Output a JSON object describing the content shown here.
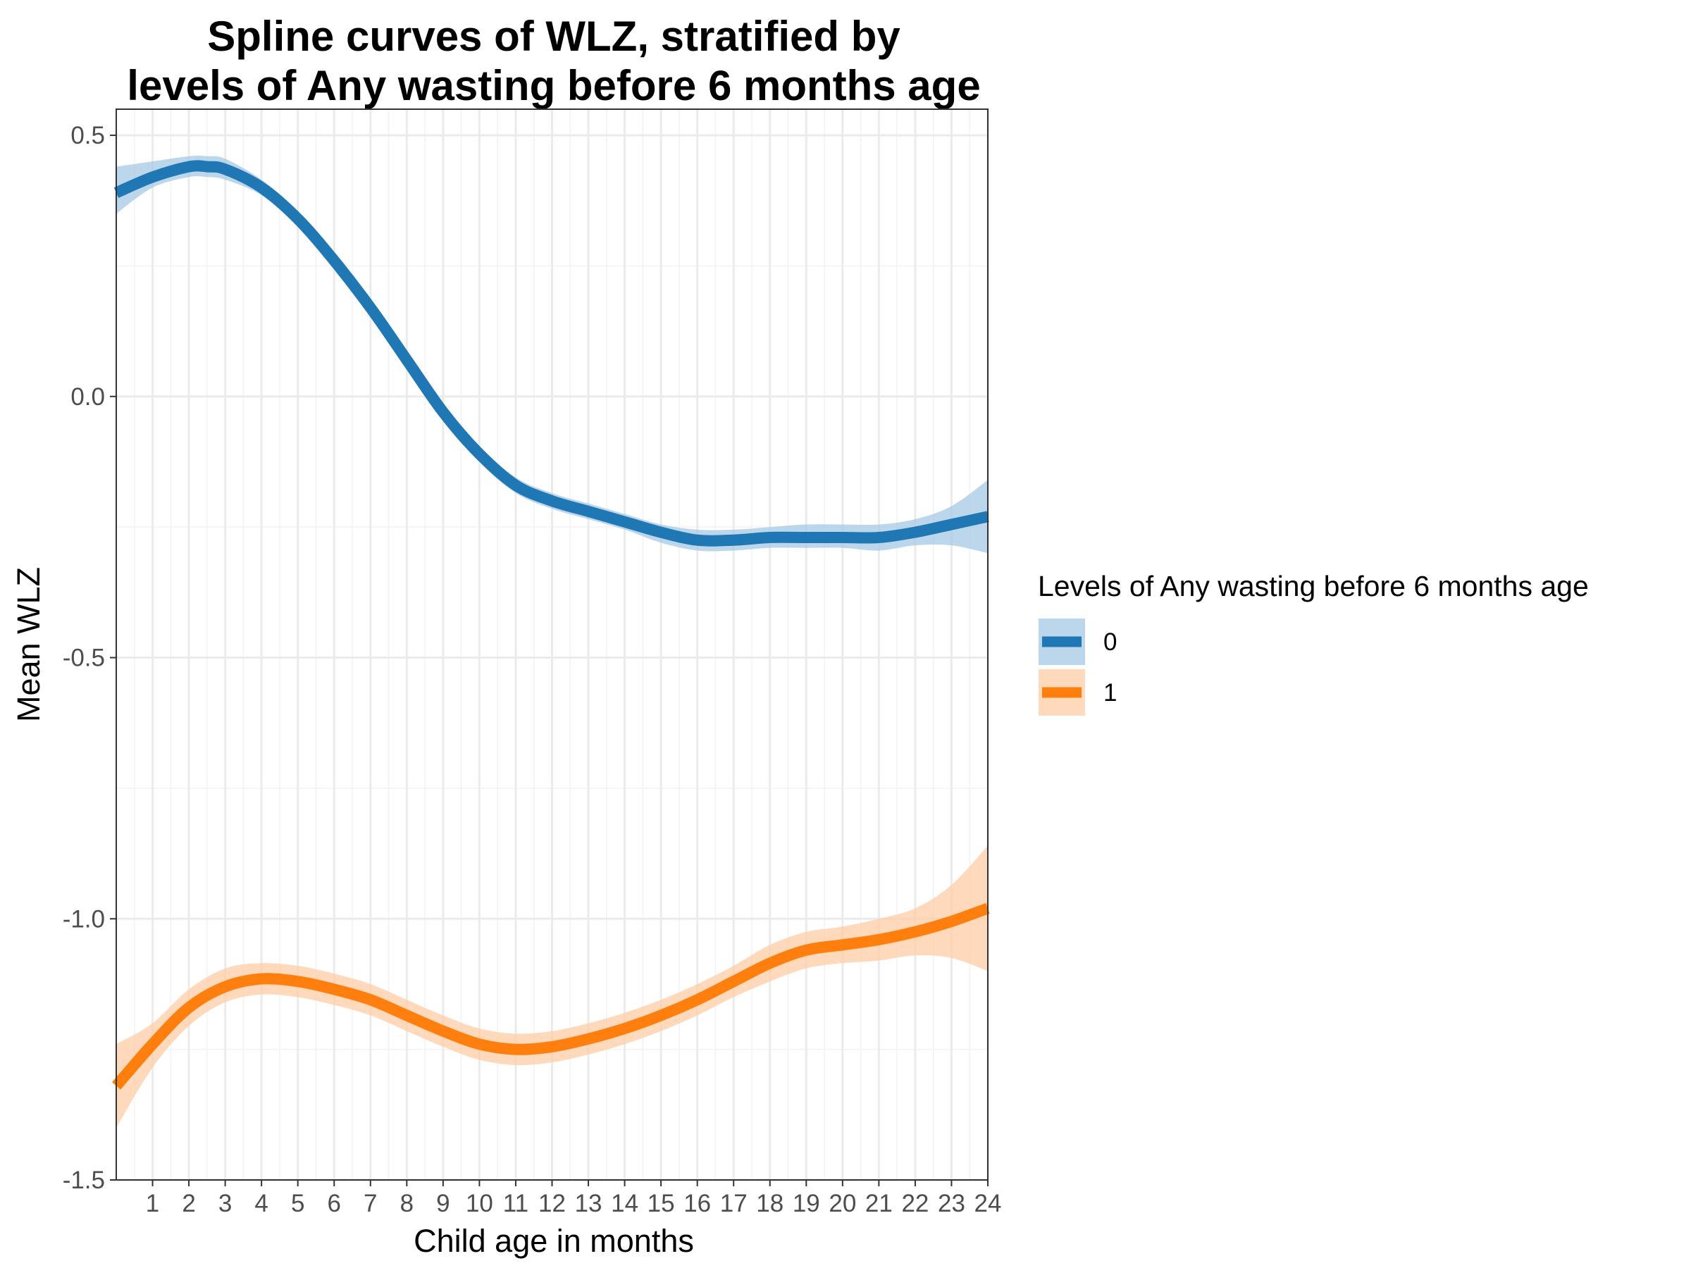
{
  "chart_data": {
    "type": "line",
    "title": [
      "Spline curves of WLZ, stratified by",
      "levels of Any wasting before 6 months age"
    ],
    "xlabel": "Child age in months",
    "ylabel": "Mean WLZ",
    "xlim": [
      0,
      24
    ],
    "ylim": [
      -1.5,
      0.55
    ],
    "x_ticks": [
      1,
      2,
      3,
      4,
      5,
      6,
      7,
      8,
      9,
      10,
      11,
      12,
      13,
      14,
      15,
      16,
      17,
      18,
      19,
      20,
      21,
      22,
      23,
      24
    ],
    "y_ticks": [
      0.5,
      0.0,
      -0.5,
      -1.0,
      -1.5
    ],
    "y_tick_labels": [
      "0.5",
      "0.0",
      "-0.5",
      "-1.0",
      "-1.5"
    ],
    "grid": true,
    "legend": {
      "title": "Levels of Any wasting before 6 months age",
      "position": "right"
    },
    "series": [
      {
        "name": "0",
        "color": "#1f78b4",
        "band_color": "#a6c8e4",
        "x": [
          0,
          1,
          2,
          2.5,
          3,
          4,
          5,
          6,
          7,
          8,
          9,
          10,
          11,
          12,
          13,
          14,
          15,
          16,
          17,
          18,
          19,
          20,
          21,
          22,
          23,
          24
        ],
        "y": [
          0.39,
          0.42,
          0.44,
          0.44,
          0.435,
          0.4,
          0.34,
          0.26,
          0.17,
          0.07,
          -0.03,
          -0.11,
          -0.17,
          -0.2,
          -0.22,
          -0.24,
          -0.26,
          -0.275,
          -0.275,
          -0.27,
          -0.27,
          -0.27,
          -0.27,
          -0.26,
          -0.245,
          -0.23
        ],
        "lower": [
          0.35,
          0.4,
          0.42,
          0.42,
          0.415,
          0.385,
          0.325,
          0.245,
          0.155,
          0.055,
          -0.045,
          -0.125,
          -0.185,
          -0.215,
          -0.235,
          -0.255,
          -0.28,
          -0.295,
          -0.295,
          -0.29,
          -0.29,
          -0.29,
          -0.295,
          -0.285,
          -0.285,
          -0.3
        ],
        "upper": [
          0.44,
          0.45,
          0.46,
          0.46,
          0.455,
          0.415,
          0.355,
          0.275,
          0.185,
          0.085,
          -0.015,
          -0.095,
          -0.155,
          -0.185,
          -0.205,
          -0.225,
          -0.245,
          -0.255,
          -0.255,
          -0.25,
          -0.245,
          -0.245,
          -0.245,
          -0.235,
          -0.21,
          -0.16
        ]
      },
      {
        "name": "1",
        "color": "#ff7f0e",
        "band_color": "#fdcca6",
        "x": [
          0,
          1,
          2,
          3,
          4,
          5,
          6,
          7,
          8,
          9,
          10,
          11,
          12,
          13,
          14,
          15,
          16,
          17,
          18,
          19,
          20,
          21,
          22,
          23,
          24
        ],
        "y": [
          -1.32,
          -1.24,
          -1.17,
          -1.13,
          -1.115,
          -1.12,
          -1.135,
          -1.155,
          -1.185,
          -1.215,
          -1.24,
          -1.25,
          -1.245,
          -1.23,
          -1.21,
          -1.185,
          -1.155,
          -1.12,
          -1.085,
          -1.06,
          -1.05,
          -1.04,
          -1.025,
          -1.005,
          -0.98
        ],
        "lower": [
          -1.4,
          -1.285,
          -1.205,
          -1.16,
          -1.145,
          -1.15,
          -1.165,
          -1.185,
          -1.215,
          -1.245,
          -1.27,
          -1.28,
          -1.275,
          -1.26,
          -1.24,
          -1.215,
          -1.185,
          -1.15,
          -1.12,
          -1.095,
          -1.085,
          -1.08,
          -1.07,
          -1.075,
          -1.1
        ],
        "upper": [
          -1.24,
          -1.2,
          -1.135,
          -1.095,
          -1.085,
          -1.09,
          -1.105,
          -1.125,
          -1.155,
          -1.185,
          -1.21,
          -1.22,
          -1.215,
          -1.2,
          -1.18,
          -1.155,
          -1.125,
          -1.09,
          -1.05,
          -1.025,
          -1.015,
          -1.0,
          -0.98,
          -0.935,
          -0.86
        ]
      }
    ]
  }
}
